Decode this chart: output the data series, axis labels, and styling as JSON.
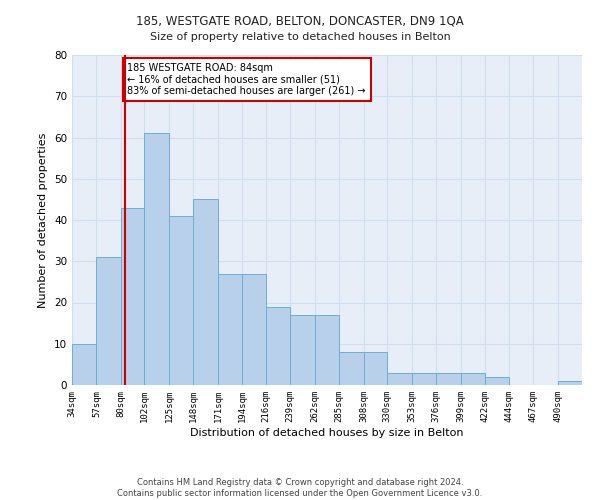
{
  "title1": "185, WESTGATE ROAD, BELTON, DONCASTER, DN9 1QA",
  "title2": "Size of property relative to detached houses in Belton",
  "xlabel": "Distribution of detached houses by size in Belton",
  "ylabel": "Number of detached properties",
  "bin_labels": [
    "34sqm",
    "57sqm",
    "80sqm",
    "102sqm",
    "125sqm",
    "148sqm",
    "171sqm",
    "194sqm",
    "216sqm",
    "239sqm",
    "262sqm",
    "285sqm",
    "308sqm",
    "330sqm",
    "353sqm",
    "376sqm",
    "399sqm",
    "422sqm",
    "444sqm",
    "467sqm",
    "490sqm"
  ],
  "bin_edges": [
    34,
    57,
    80,
    102,
    125,
    148,
    171,
    194,
    216,
    239,
    262,
    285,
    308,
    330,
    353,
    376,
    399,
    422,
    444,
    467,
    490
  ],
  "bar_values": [
    10,
    31,
    43,
    61,
    41,
    45,
    27,
    27,
    19,
    17,
    17,
    8,
    8,
    3,
    3,
    3,
    3,
    2,
    0,
    0,
    1
  ],
  "bar_color": "#b8d0ea",
  "bar_edge_color": "#6baed6",
  "grid_color": "#d0dff0",
  "background_color": "#e8eef8",
  "red_line_x": 84,
  "annotation_title": "185 WESTGATE ROAD: 84sqm",
  "annotation_line1": "← 16% of detached houses are smaller (51)",
  "annotation_line2": "83% of semi-detached houses are larger (261) →",
  "annotation_box_color": "#ffffff",
  "annotation_box_edge": "#cc0000",
  "red_line_color": "#cc0000",
  "ylim": [
    0,
    80
  ],
  "yticks": [
    0,
    10,
    20,
    30,
    40,
    50,
    60,
    70,
    80
  ],
  "footer1": "Contains HM Land Registry data © Crown copyright and database right 2024.",
  "footer2": "Contains public sector information licensed under the Open Government Licence v3.0."
}
